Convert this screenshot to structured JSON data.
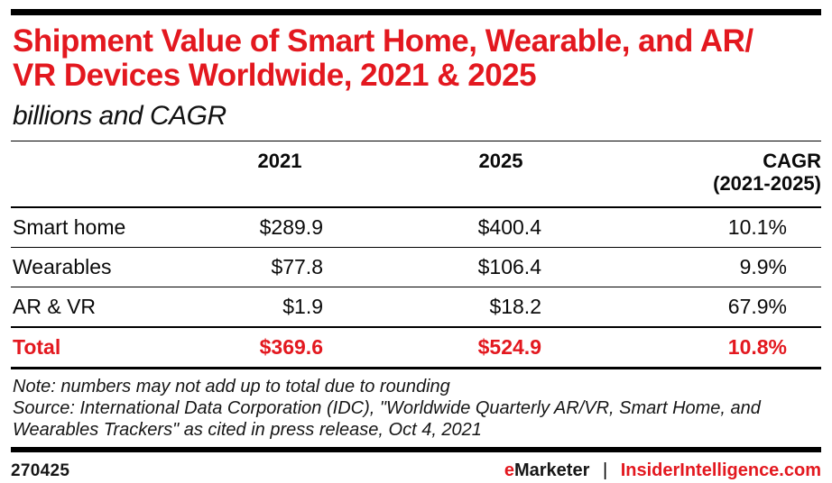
{
  "header": {
    "title_line1": "Shipment Value of Smart Home, Wearable, and AR/",
    "title_line2": "VR Devices Worldwide, 2021 & 2025"
  },
  "chart_data": {
    "type": "table",
    "title": "Shipment Value of Smart Home, Wearable, and AR/VR Devices Worldwide, 2021 & 2025",
    "subtitle": "billions and CAGR",
    "columns": [
      {
        "label": ""
      },
      {
        "label": "2021"
      },
      {
        "label": "2025"
      },
      {
        "label": "CAGR",
        "sublabel": "(2021-2025)"
      }
    ],
    "rows": [
      {
        "label": "Smart home",
        "y2021": "$289.9",
        "y2025": "$400.4",
        "cagr": "10.1%"
      },
      {
        "label": "Wearables",
        "y2021": "$77.8",
        "y2025": "$106.4",
        "cagr": "9.9%"
      },
      {
        "label": "AR & VR",
        "y2021": "$1.9",
        "y2025": "$18.2",
        "cagr": "67.9%"
      }
    ],
    "total_row": {
      "label": "Total",
      "y2021": "$369.6",
      "y2025": "$524.9",
      "cagr": "10.8%"
    }
  },
  "notes": {
    "note": "Note: numbers may not add up to total due to rounding",
    "source": "Source: International Data Corporation (IDC), \"Worldwide Quarterly AR/VR, Smart Home, and Wearables Trackers\" as cited in press release, Oct 4, 2021"
  },
  "footer": {
    "chart_id": "270425",
    "brand_prefix": "e",
    "brand_name": "Marketer",
    "separator": "|",
    "site": "InsiderIntelligence.com"
  },
  "colors": {
    "accent_red": "#e3181f",
    "text_black": "#111111",
    "rule_black": "#000000"
  }
}
